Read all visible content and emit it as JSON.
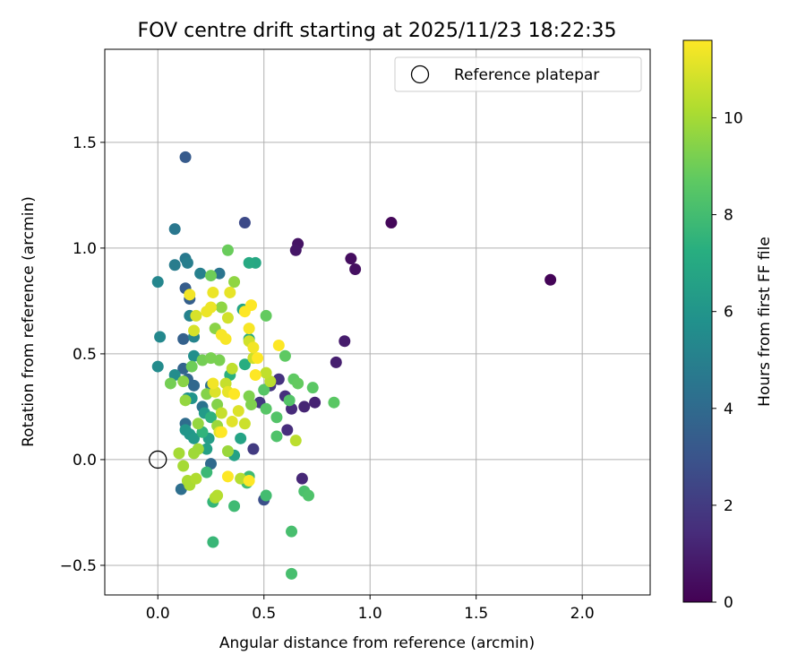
{
  "chart_data": {
    "type": "scatter",
    "title": "FOV centre drift starting at 2025/11/23 18:22:35",
    "xlabel": "Angular distance from reference (arcmin)",
    "ylabel": "Rotation from reference (arcmin)",
    "xlim": [
      -0.25,
      2.32
    ],
    "ylim": [
      -0.64,
      1.94
    ],
    "xticks": [
      0.0,
      0.5,
      1.0,
      1.5,
      2.0
    ],
    "xtick_labels": [
      "0.0",
      "0.5",
      "1.0",
      "1.5",
      "2.0"
    ],
    "yticks": [
      -0.5,
      0.0,
      0.5,
      1.0,
      1.5
    ],
    "ytick_labels": [
      "−0.5",
      "0.0",
      "0.5",
      "1.0",
      "1.5"
    ],
    "grid": true,
    "legend": {
      "position": "upper-right",
      "entries": [
        "Reference platepar"
      ]
    },
    "reference_point": {
      "x": 0.0,
      "y": 0.0,
      "label": "Reference platepar"
    },
    "colorbar": {
      "label": "Hours from first FF file",
      "range": [
        0,
        11.6
      ],
      "ticks": [
        0,
        2,
        4,
        6,
        8,
        10
      ],
      "tick_labels": [
        "0",
        "2",
        "4",
        "6",
        "8",
        "10"
      ],
      "colormap": "viridis"
    },
    "color_value": "hours from first FF file",
    "points": [
      {
        "x": 1.85,
        "y": 0.85,
        "c": 0.1
      },
      {
        "x": 1.1,
        "y": 1.12,
        "c": 0.2
      },
      {
        "x": 0.91,
        "y": 0.95,
        "c": 0.4
      },
      {
        "x": 0.93,
        "y": 0.9,
        "c": 0.5
      },
      {
        "x": 0.66,
        "y": 1.02,
        "c": 0.6
      },
      {
        "x": 0.65,
        "y": 0.99,
        "c": 0.7
      },
      {
        "x": 0.88,
        "y": 0.56,
        "c": 0.9
      },
      {
        "x": 0.84,
        "y": 0.46,
        "c": 1.0
      },
      {
        "x": 0.74,
        "y": 0.27,
        "c": 1.1
      },
      {
        "x": 0.69,
        "y": 0.25,
        "c": 1.2
      },
      {
        "x": 0.68,
        "y": -0.09,
        "c": 1.3
      },
      {
        "x": 0.63,
        "y": 0.24,
        "c": 1.4
      },
      {
        "x": 0.61,
        "y": 0.14,
        "c": 1.5
      },
      {
        "x": 0.6,
        "y": 0.3,
        "c": 1.6
      },
      {
        "x": 0.57,
        "y": 0.38,
        "c": 1.7
      },
      {
        "x": 0.53,
        "y": 0.35,
        "c": 1.8
      },
      {
        "x": 0.48,
        "y": 0.27,
        "c": 1.9
      },
      {
        "x": 0.45,
        "y": 0.05,
        "c": 2.0
      },
      {
        "x": 0.41,
        "y": 1.12,
        "c": 2.6
      },
      {
        "x": 0.5,
        "y": -0.19,
        "c": 2.8
      },
      {
        "x": 0.13,
        "y": 1.43,
        "c": 3.3
      },
      {
        "x": 0.13,
        "y": 0.81,
        "c": 3.4
      },
      {
        "x": 0.15,
        "y": 0.76,
        "c": 3.5
      },
      {
        "x": 0.12,
        "y": 0.57,
        "c": 3.6
      },
      {
        "x": 0.12,
        "y": 0.43,
        "c": 3.7
      },
      {
        "x": 0.14,
        "y": 0.38,
        "c": 3.8
      },
      {
        "x": 0.17,
        "y": 0.35,
        "c": 3.9
      },
      {
        "x": 0.25,
        "y": -0.02,
        "c": 4.0
      },
      {
        "x": 0.13,
        "y": 0.17,
        "c": 4.1
      },
      {
        "x": 0.11,
        "y": -0.14,
        "c": 4.2
      },
      {
        "x": 0.25,
        "y": 0.35,
        "c": 4.3
      },
      {
        "x": 0.21,
        "y": 0.25,
        "c": 4.4
      },
      {
        "x": 0.29,
        "y": 0.88,
        "c": 4.5
      },
      {
        "x": 0.08,
        "y": 1.09,
        "c": 4.6
      },
      {
        "x": 0.13,
        "y": 0.95,
        "c": 4.7
      },
      {
        "x": 0.08,
        "y": 0.92,
        "c": 4.8
      },
      {
        "x": 0.14,
        "y": 0.93,
        "c": 4.9
      },
      {
        "x": 0.2,
        "y": 0.88,
        "c": 5.0
      },
      {
        "x": 0.15,
        "y": 0.68,
        "c": 5.1
      },
      {
        "x": 0.17,
        "y": 0.58,
        "c": 5.2
      },
      {
        "x": 0.0,
        "y": 0.84,
        "c": 5.3
      },
      {
        "x": 0.01,
        "y": 0.58,
        "c": 5.4
      },
      {
        "x": 0.0,
        "y": 0.44,
        "c": 5.5
      },
      {
        "x": 0.08,
        "y": 0.4,
        "c": 5.6
      },
      {
        "x": 0.17,
        "y": 0.49,
        "c": 5.7
      },
      {
        "x": 0.14,
        "y": 0.29,
        "c": 5.8
      },
      {
        "x": 0.16,
        "y": 0.29,
        "c": 5.9
      },
      {
        "x": 0.13,
        "y": 0.14,
        "c": 6.0
      },
      {
        "x": 0.15,
        "y": 0.12,
        "c": 6.1
      },
      {
        "x": 0.17,
        "y": 0.1,
        "c": 6.2
      },
      {
        "x": 0.22,
        "y": 0.22,
        "c": 6.3
      },
      {
        "x": 0.24,
        "y": 0.1,
        "c": 6.4
      },
      {
        "x": 0.23,
        "y": 0.05,
        "c": 6.5
      },
      {
        "x": 0.36,
        "y": 0.02,
        "c": 6.6
      },
      {
        "x": 0.39,
        "y": 0.1,
        "c": 6.7
      },
      {
        "x": 0.4,
        "y": 0.71,
        "c": 6.8
      },
      {
        "x": 0.46,
        "y": 0.93,
        "c": 6.9
      },
      {
        "x": 0.43,
        "y": 0.93,
        "c": 7.0
      },
      {
        "x": 0.43,
        "y": 0.57,
        "c": 7.1
      },
      {
        "x": 0.41,
        "y": 0.45,
        "c": 7.2
      },
      {
        "x": 0.34,
        "y": 0.4,
        "c": 7.3
      },
      {
        "x": 0.25,
        "y": 0.2,
        "c": 7.4
      },
      {
        "x": 0.21,
        "y": 0.13,
        "c": 7.5
      },
      {
        "x": 0.26,
        "y": -0.2,
        "c": 7.6
      },
      {
        "x": 0.26,
        "y": -0.39,
        "c": 7.7
      },
      {
        "x": 0.23,
        "y": -0.06,
        "c": 7.8
      },
      {
        "x": 0.36,
        "y": -0.22,
        "c": 7.9
      },
      {
        "x": 0.43,
        "y": -0.08,
        "c": 7.9
      },
      {
        "x": 0.42,
        "y": -0.11,
        "c": 8.0
      },
      {
        "x": 0.51,
        "y": -0.17,
        "c": 8.0
      },
      {
        "x": 0.63,
        "y": -0.34,
        "c": 8.1
      },
      {
        "x": 0.63,
        "y": -0.54,
        "c": 8.1
      },
      {
        "x": 0.69,
        "y": -0.15,
        "c": 8.2
      },
      {
        "x": 0.71,
        "y": -0.17,
        "c": 8.3
      },
      {
        "x": 0.56,
        "y": 0.11,
        "c": 8.3
      },
      {
        "x": 0.56,
        "y": 0.2,
        "c": 8.4
      },
      {
        "x": 0.62,
        "y": 0.28,
        "c": 8.4
      },
      {
        "x": 0.5,
        "y": 0.33,
        "c": 8.5
      },
      {
        "x": 0.51,
        "y": 0.24,
        "c": 8.5
      },
      {
        "x": 0.73,
        "y": 0.34,
        "c": 8.6
      },
      {
        "x": 0.83,
        "y": 0.27,
        "c": 8.6
      },
      {
        "x": 0.6,
        "y": 0.49,
        "c": 8.7
      },
      {
        "x": 0.64,
        "y": 0.38,
        "c": 8.7
      },
      {
        "x": 0.66,
        "y": 0.36,
        "c": 8.8
      },
      {
        "x": 0.51,
        "y": 0.68,
        "c": 8.8
      },
      {
        "x": 0.33,
        "y": 0.99,
        "c": 8.9
      },
      {
        "x": 0.25,
        "y": 0.87,
        "c": 9.0
      },
      {
        "x": 0.16,
        "y": 0.44,
        "c": 9.0
      },
      {
        "x": 0.21,
        "y": 0.47,
        "c": 9.1
      },
      {
        "x": 0.06,
        "y": 0.36,
        "c": 9.1
      },
      {
        "x": 0.25,
        "y": 0.48,
        "c": 9.2
      },
      {
        "x": 0.29,
        "y": 0.47,
        "c": 9.2
      },
      {
        "x": 0.43,
        "y": 0.3,
        "c": 9.3
      },
      {
        "x": 0.44,
        "y": 0.26,
        "c": 9.3
      },
      {
        "x": 0.28,
        "y": 0.26,
        "c": 9.4
      },
      {
        "x": 0.23,
        "y": 0.31,
        "c": 9.4
      },
      {
        "x": 0.12,
        "y": 0.37,
        "c": 9.5
      },
      {
        "x": 0.27,
        "y": 0.62,
        "c": 9.5
      },
      {
        "x": 0.3,
        "y": 0.72,
        "c": 9.6
      },
      {
        "x": 0.36,
        "y": 0.84,
        "c": 9.6
      },
      {
        "x": 0.13,
        "y": 0.28,
        "c": 9.7
      },
      {
        "x": 0.19,
        "y": 0.17,
        "c": 9.7
      },
      {
        "x": 0.28,
        "y": 0.16,
        "c": 9.8
      },
      {
        "x": 0.33,
        "y": 0.04,
        "c": 9.8
      },
      {
        "x": 0.19,
        "y": 0.05,
        "c": 9.9
      },
      {
        "x": 0.17,
        "y": 0.03,
        "c": 9.9
      },
      {
        "x": 0.1,
        "y": 0.03,
        "c": 10.0
      },
      {
        "x": 0.12,
        "y": -0.03,
        "c": 10.0
      },
      {
        "x": 0.14,
        "y": -0.1,
        "c": 10.1
      },
      {
        "x": 0.15,
        "y": -0.12,
        "c": 10.1
      },
      {
        "x": 0.18,
        "y": -0.09,
        "c": 10.2
      },
      {
        "x": 0.27,
        "y": -0.18,
        "c": 10.2
      },
      {
        "x": 0.28,
        "y": -0.17,
        "c": 10.3
      },
      {
        "x": 0.39,
        "y": -0.09,
        "c": 10.3
      },
      {
        "x": 0.65,
        "y": 0.09,
        "c": 10.4
      },
      {
        "x": 0.53,
        "y": 0.37,
        "c": 10.4
      },
      {
        "x": 0.51,
        "y": 0.41,
        "c": 10.5
      },
      {
        "x": 0.35,
        "y": 0.43,
        "c": 10.5
      },
      {
        "x": 0.32,
        "y": 0.36,
        "c": 10.6
      },
      {
        "x": 0.3,
        "y": 0.22,
        "c": 10.6
      },
      {
        "x": 0.41,
        "y": 0.17,
        "c": 10.7
      },
      {
        "x": 0.45,
        "y": 0.48,
        "c": 10.7
      },
      {
        "x": 0.43,
        "y": 0.56,
        "c": 10.8
      },
      {
        "x": 0.33,
        "y": 0.67,
        "c": 10.8
      },
      {
        "x": 0.18,
        "y": 0.68,
        "c": 10.9
      },
      {
        "x": 0.17,
        "y": 0.61,
        "c": 10.9
      },
      {
        "x": 0.27,
        "y": 0.32,
        "c": 11.0
      },
      {
        "x": 0.38,
        "y": 0.23,
        "c": 11.0
      },
      {
        "x": 0.35,
        "y": 0.18,
        "c": 11.1
      },
      {
        "x": 0.29,
        "y": 0.13,
        "c": 11.1
      },
      {
        "x": 0.33,
        "y": 0.32,
        "c": 11.2
      },
      {
        "x": 0.34,
        "y": 0.79,
        "c": 11.2
      },
      {
        "x": 0.26,
        "y": 0.79,
        "c": 11.3
      },
      {
        "x": 0.25,
        "y": 0.72,
        "c": 11.3
      },
      {
        "x": 0.23,
        "y": 0.7,
        "c": 11.3
      },
      {
        "x": 0.15,
        "y": 0.78,
        "c": 11.4
      },
      {
        "x": 0.26,
        "y": 0.36,
        "c": 11.4
      },
      {
        "x": 0.45,
        "y": 0.53,
        "c": 11.4
      },
      {
        "x": 0.3,
        "y": 0.59,
        "c": 11.5
      },
      {
        "x": 0.32,
        "y": 0.57,
        "c": 11.5
      },
      {
        "x": 0.43,
        "y": 0.62,
        "c": 11.5
      },
      {
        "x": 0.44,
        "y": 0.73,
        "c": 11.6
      },
      {
        "x": 0.41,
        "y": 0.7,
        "c": 11.6
      },
      {
        "x": 0.57,
        "y": 0.54,
        "c": 11.6
      },
      {
        "x": 0.36,
        "y": 0.31,
        "c": 11.6
      },
      {
        "x": 0.33,
        "y": -0.08,
        "c": 11.6
      },
      {
        "x": 0.43,
        "y": -0.1,
        "c": 11.6
      },
      {
        "x": 0.46,
        "y": 0.4,
        "c": 11.6
      },
      {
        "x": 0.47,
        "y": 0.48,
        "c": 11.6
      },
      {
        "x": 0.3,
        "y": 0.13,
        "c": 11.6
      }
    ]
  }
}
